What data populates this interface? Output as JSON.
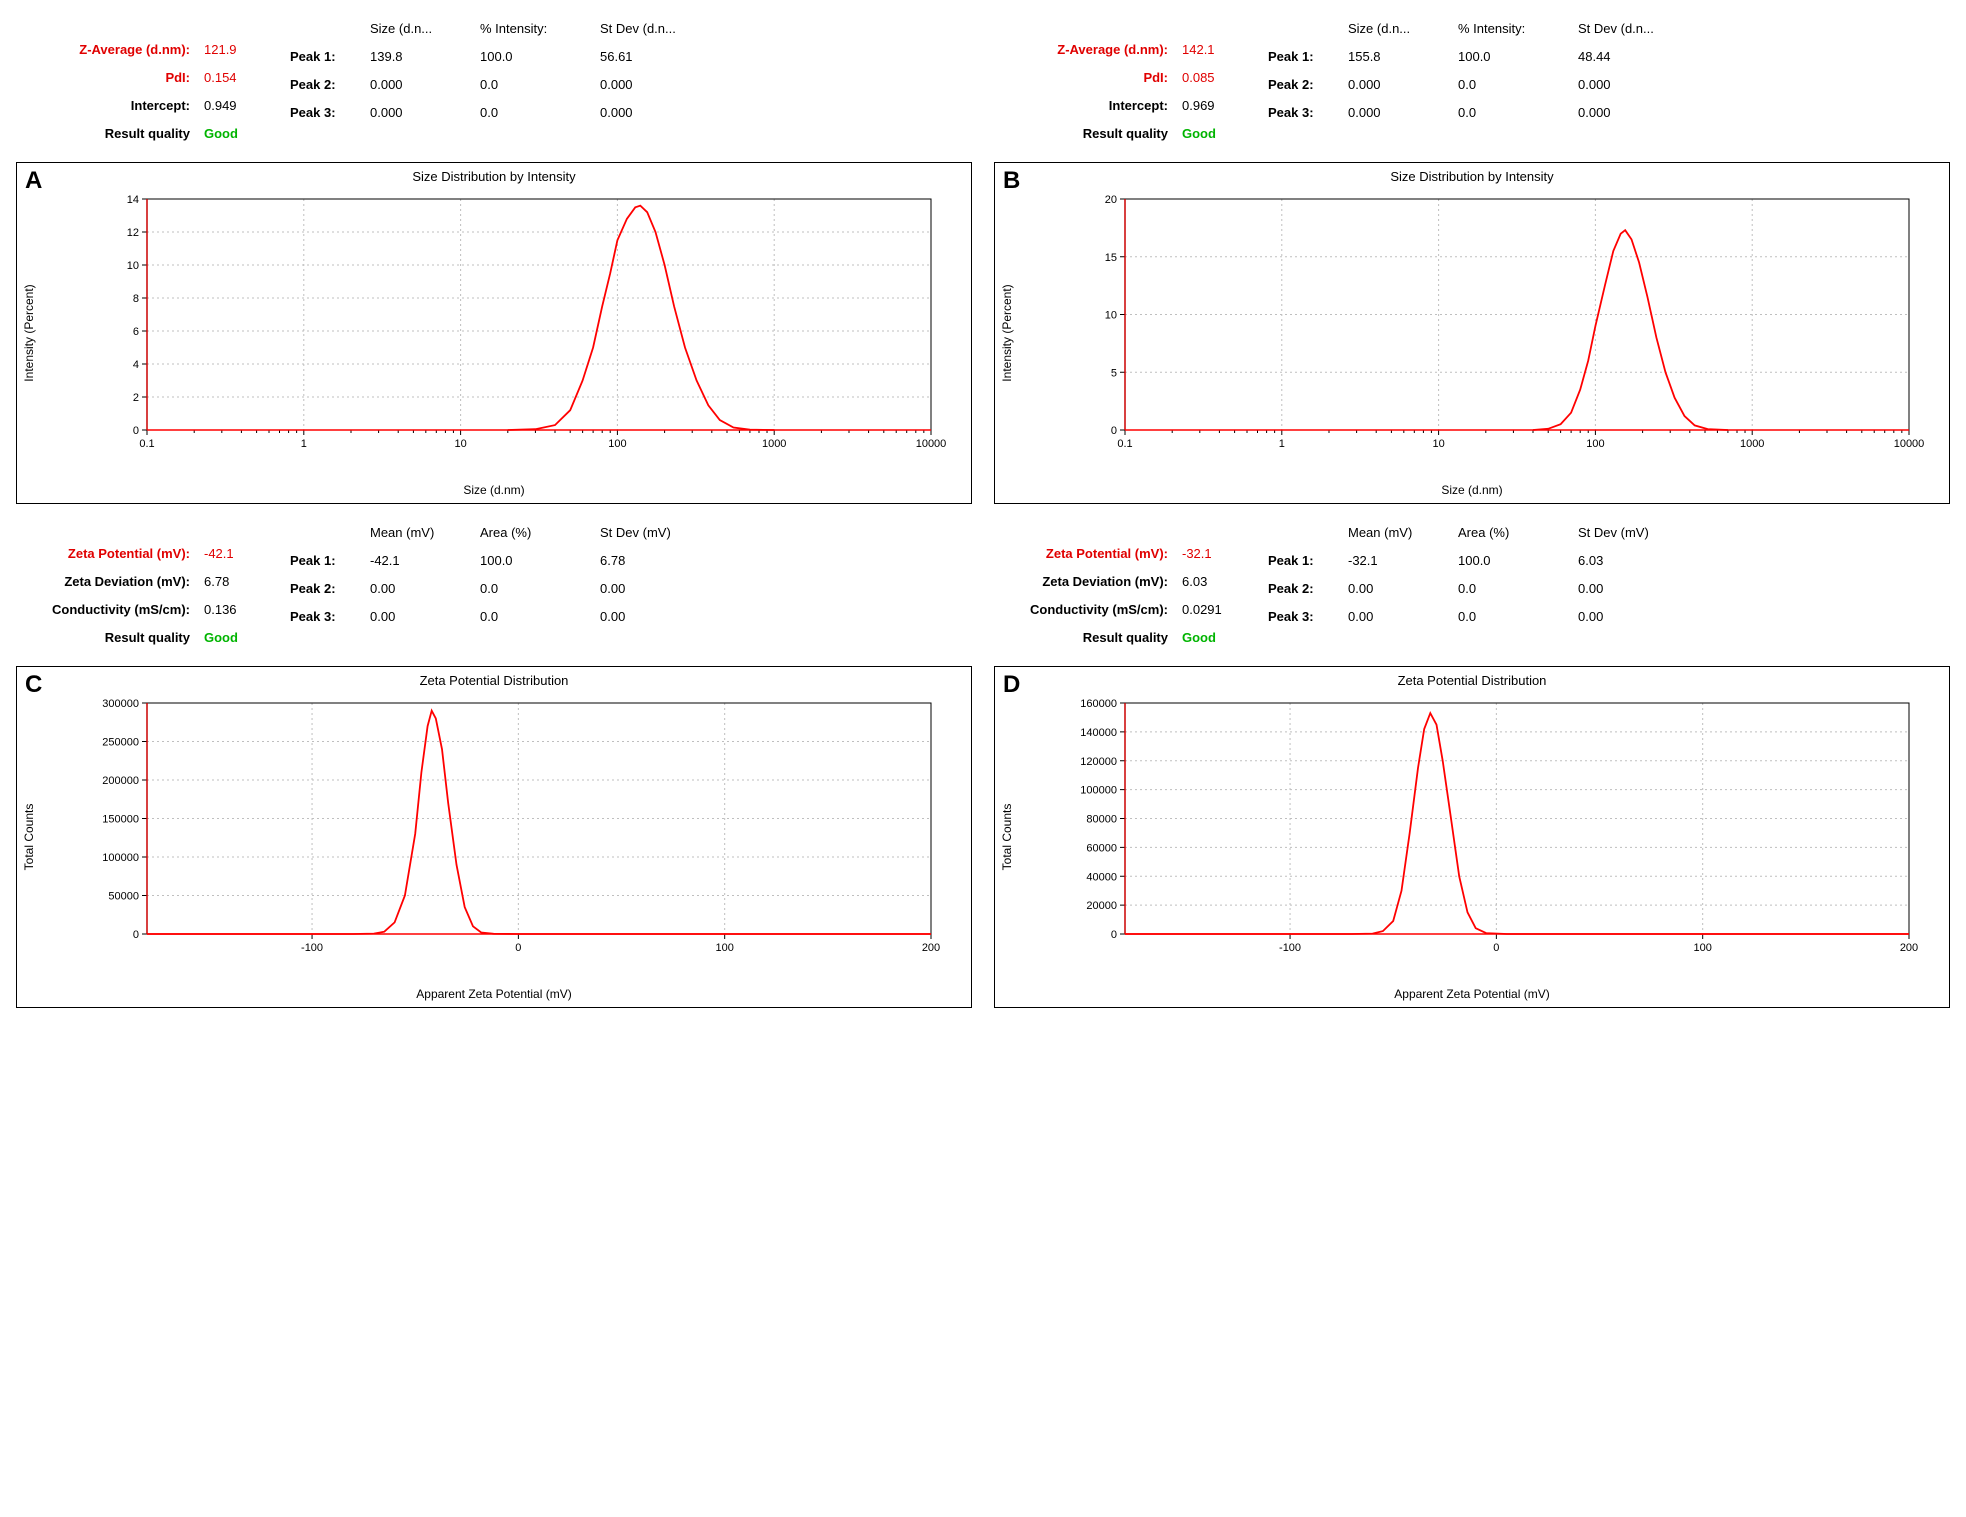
{
  "colors": {
    "red_text": "#e00000",
    "green_text": "#00b400",
    "curve": "#ff0000",
    "grid": "#bfbfbf",
    "axis": "#000000",
    "yaxis_red": "#cc0000",
    "bg": "#ffffff"
  },
  "size_headers": {
    "c1": "Size (d.n...",
    "c2": "% Intensity:",
    "c3": "St Dev (d.n..."
  },
  "zeta_headers": {
    "c1": "Mean (mV)",
    "c2": "Area (%)",
    "c3": "St Dev (mV)"
  },
  "labels": {
    "zavg": "Z-Average (d.nm):",
    "pdi": "PdI:",
    "intercept": "Intercept:",
    "quality": "Result quality",
    "zp": "Zeta Potential (mV):",
    "zdev": "Zeta Deviation (mV):",
    "cond": "Conductivity (mS/cm):",
    "p1": "Peak 1:",
    "p2": "Peak 2:",
    "p3": "Peak 3:",
    "good": "Good"
  },
  "panelA": {
    "letter": "A",
    "stats": {
      "zavg": "121.9",
      "pdi": "0.154",
      "intercept": "0.949"
    },
    "peaks": [
      {
        "c1": "139.8",
        "c2": "100.0",
        "c3": "56.61"
      },
      {
        "c1": "0.000",
        "c2": "0.0",
        "c3": "0.000"
      },
      {
        "c1": "0.000",
        "c2": "0.0",
        "c3": "0.000"
      }
    ],
    "chart": {
      "title": "Size Distribution by Intensity",
      "xlabel": "Size (d.nm)",
      "ylabel": "Intensity (Percent)",
      "type": "line-logx",
      "xlog": true,
      "xlim": [
        0.1,
        10000
      ],
      "xticks_major": [
        0.1,
        1,
        10,
        100,
        1000,
        10000
      ],
      "ylim": [
        0,
        14
      ],
      "yticks": [
        0,
        2,
        4,
        6,
        8,
        10,
        12,
        14
      ],
      "curve_color": "#ff0000",
      "grid": true,
      "data": [
        [
          20,
          0
        ],
        [
          30,
          0.05
        ],
        [
          40,
          0.3
        ],
        [
          50,
          1.2
        ],
        [
          60,
          3.0
        ],
        [
          70,
          5.0
        ],
        [
          80,
          7.5
        ],
        [
          90,
          9.5
        ],
        [
          100,
          11.5
        ],
        [
          115,
          12.8
        ],
        [
          130,
          13.5
        ],
        [
          140,
          13.6
        ],
        [
          155,
          13.2
        ],
        [
          175,
          12.0
        ],
        [
          200,
          10.0
        ],
        [
          230,
          7.5
        ],
        [
          270,
          5.0
        ],
        [
          320,
          3.0
        ],
        [
          380,
          1.5
        ],
        [
          450,
          0.6
        ],
        [
          550,
          0.15
        ],
        [
          700,
          0.02
        ],
        [
          1000,
          0
        ]
      ]
    }
  },
  "panelB": {
    "letter": "B",
    "stats": {
      "zavg": "142.1",
      "pdi": "0.085",
      "intercept": "0.969"
    },
    "peaks": [
      {
        "c1": "155.8",
        "c2": "100.0",
        "c3": "48.44"
      },
      {
        "c1": "0.000",
        "c2": "0.0",
        "c3": "0.000"
      },
      {
        "c1": "0.000",
        "c2": "0.0",
        "c3": "0.000"
      }
    ],
    "chart": {
      "title": "Size Distribution by Intensity",
      "xlabel": "Size (d.nm)",
      "ylabel": "Intensity (Percent)",
      "type": "line-logx",
      "xlog": true,
      "xlim": [
        0.1,
        10000
      ],
      "xticks_major": [
        0.1,
        1,
        10,
        100,
        1000,
        10000
      ],
      "ylim": [
        0,
        20
      ],
      "yticks": [
        0,
        5,
        10,
        15,
        20
      ],
      "curve_color": "#ff0000",
      "grid": true,
      "data": [
        [
          40,
          0
        ],
        [
          50,
          0.1
        ],
        [
          60,
          0.5
        ],
        [
          70,
          1.5
        ],
        [
          80,
          3.5
        ],
        [
          90,
          6.0
        ],
        [
          100,
          9.0
        ],
        [
          115,
          12.5
        ],
        [
          130,
          15.5
        ],
        [
          145,
          17.0
        ],
        [
          155,
          17.3
        ],
        [
          170,
          16.5
        ],
        [
          190,
          14.5
        ],
        [
          215,
          11.5
        ],
        [
          245,
          8.0
        ],
        [
          280,
          5.0
        ],
        [
          320,
          2.8
        ],
        [
          370,
          1.2
        ],
        [
          430,
          0.4
        ],
        [
          520,
          0.08
        ],
        [
          700,
          0
        ]
      ]
    }
  },
  "panelC": {
    "letter": "C",
    "stats": {
      "zp": "-42.1",
      "zdev": "6.78",
      "cond": "0.136"
    },
    "peaks": [
      {
        "c1": "-42.1",
        "c2": "100.0",
        "c3": "6.78"
      },
      {
        "c1": "0.00",
        "c2": "0.0",
        "c3": "0.00"
      },
      {
        "c1": "0.00",
        "c2": "0.0",
        "c3": "0.00"
      }
    ],
    "chart": {
      "title": "Zeta Potential Distribution",
      "xlabel": "Apparent Zeta Potential (mV)",
      "ylabel": "Total Counts",
      "type": "line",
      "xlog": false,
      "xlim": [
        -180,
        200
      ],
      "xticks_major": [
        -100,
        0,
        100,
        200
      ],
      "ylim": [
        0,
        300000
      ],
      "yticks": [
        0,
        50000,
        100000,
        150000,
        200000,
        250000,
        300000
      ],
      "curve_color": "#ff0000",
      "grid": true,
      "data": [
        [
          -180,
          0
        ],
        [
          -80,
          0
        ],
        [
          -70,
          500
        ],
        [
          -65,
          3000
        ],
        [
          -60,
          15000
        ],
        [
          -55,
          50000
        ],
        [
          -50,
          130000
        ],
        [
          -47,
          210000
        ],
        [
          -44,
          270000
        ],
        [
          -42,
          290000
        ],
        [
          -40,
          280000
        ],
        [
          -37,
          240000
        ],
        [
          -34,
          170000
        ],
        [
          -30,
          90000
        ],
        [
          -26,
          35000
        ],
        [
          -22,
          10000
        ],
        [
          -18,
          2000
        ],
        [
          -12,
          200
        ],
        [
          0,
          0
        ],
        [
          200,
          0
        ]
      ]
    }
  },
  "panelD": {
    "letter": "D",
    "stats": {
      "zp": "-32.1",
      "zdev": "6.03",
      "cond": "0.0291"
    },
    "peaks": [
      {
        "c1": "-32.1",
        "c2": "100.0",
        "c3": "6.03"
      },
      {
        "c1": "0.00",
        "c2": "0.0",
        "c3": "0.00"
      },
      {
        "c1": "0.00",
        "c2": "0.0",
        "c3": "0.00"
      }
    ],
    "chart": {
      "title": "Zeta Potential Distribution",
      "xlabel": "Apparent Zeta Potential (mV)",
      "ylabel": "Total Counts",
      "type": "line",
      "xlog": false,
      "xlim": [
        -180,
        200
      ],
      "xticks_major": [
        -100,
        0,
        100,
        200
      ],
      "ylim": [
        0,
        160000
      ],
      "yticks": [
        0,
        20000,
        40000,
        60000,
        80000,
        100000,
        120000,
        140000,
        160000
      ],
      "curve_color": "#ff0000",
      "grid": true,
      "data": [
        [
          -180,
          0
        ],
        [
          -70,
          0
        ],
        [
          -60,
          300
        ],
        [
          -55,
          2000
        ],
        [
          -50,
          9000
        ],
        [
          -46,
          30000
        ],
        [
          -42,
          70000
        ],
        [
          -38,
          115000
        ],
        [
          -35,
          142000
        ],
        [
          -32,
          153000
        ],
        [
          -29,
          145000
        ],
        [
          -26,
          120000
        ],
        [
          -22,
          80000
        ],
        [
          -18,
          40000
        ],
        [
          -14,
          15000
        ],
        [
          -10,
          4000
        ],
        [
          -5,
          600
        ],
        [
          5,
          0
        ],
        [
          200,
          0
        ]
      ]
    }
  }
}
